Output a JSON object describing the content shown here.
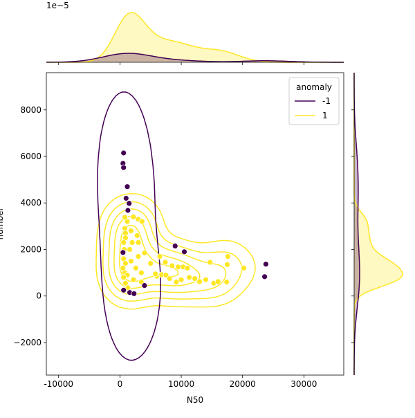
{
  "chart_data": {
    "type": "scatter",
    "xlabel": "N50",
    "ylabel": "number",
    "xlim": [
      -12000,
      36500
    ],
    "ylim": [
      -3400,
      9600
    ],
    "xticks": [
      -10000,
      0,
      10000,
      20000,
      30000
    ],
    "yticks": [
      -2000,
      0,
      2000,
      4000,
      6000,
      8000
    ],
    "top_marginal_offset_label": "1e−5",
    "legend": {
      "title": "anomaly",
      "placement": "upper right"
    },
    "colors": {
      "-1": "#440154",
      "1": "#fde725"
    },
    "series": [
      {
        "name": "-1",
        "color": "#440154",
        "points": [
          [
            600,
            6150
          ],
          [
            500,
            5700
          ],
          [
            600,
            5520
          ],
          [
            1200,
            4700
          ],
          [
            1000,
            4200
          ],
          [
            1500,
            3980
          ],
          [
            1300,
            3680
          ],
          [
            500,
            1870
          ],
          [
            4000,
            450
          ],
          [
            1600,
            150
          ],
          [
            2300,
            100
          ],
          [
            600,
            250
          ],
          [
            9000,
            2150
          ],
          [
            10500,
            1900
          ],
          [
            23800,
            1370
          ],
          [
            23600,
            830
          ]
        ]
      },
      {
        "name": "1",
        "color": "#fde725",
        "points": [
          [
            800,
            3380
          ],
          [
            1200,
            3200
          ],
          [
            2200,
            3400
          ],
          [
            3000,
            3300
          ],
          [
            3600,
            3200
          ],
          [
            800,
            2900
          ],
          [
            900,
            2700
          ],
          [
            1800,
            2800
          ],
          [
            2800,
            2600
          ],
          [
            900,
            2500
          ],
          [
            600,
            2300
          ],
          [
            2000,
            2300
          ],
          [
            700,
            2000
          ],
          [
            1600,
            2000
          ],
          [
            3000,
            2300
          ],
          [
            4000,
            1850
          ],
          [
            600,
            1600
          ],
          [
            900,
            1400
          ],
          [
            1800,
            1500
          ],
          [
            3000,
            1700
          ],
          [
            500,
            1200
          ],
          [
            800,
            1000
          ],
          [
            1200,
            900
          ],
          [
            2600,
            1200
          ],
          [
            3500,
            1000
          ],
          [
            5000,
            1400
          ],
          [
            6500,
            1700
          ],
          [
            7400,
            1450
          ],
          [
            8500,
            1300
          ],
          [
            9500,
            1250
          ],
          [
            10300,
            1250
          ],
          [
            11000,
            1200
          ],
          [
            14700,
            1450
          ],
          [
            17600,
            1700
          ],
          [
            17500,
            1350
          ],
          [
            20200,
            1200
          ],
          [
            6000,
            850
          ],
          [
            6800,
            920
          ],
          [
            7500,
            900
          ],
          [
            8100,
            750
          ],
          [
            9200,
            600
          ],
          [
            10000,
            700
          ],
          [
            11300,
            800
          ],
          [
            12200,
            750
          ],
          [
            13000,
            620
          ],
          [
            14000,
            700
          ],
          [
            15300,
            550
          ],
          [
            16000,
            620
          ],
          [
            17400,
            600
          ],
          [
            600,
            800
          ],
          [
            900,
            550
          ],
          [
            1300,
            350
          ],
          [
            2200,
            700
          ],
          [
            3500,
            600
          ],
          [
            5800,
            950
          ]
        ]
      }
    ],
    "top_marginal": [
      {
        "name": "-1",
        "peak": 0.18,
        "shape": "anomaly"
      },
      {
        "name": "1",
        "peak": 1.0,
        "shape": "normal"
      }
    ]
  }
}
